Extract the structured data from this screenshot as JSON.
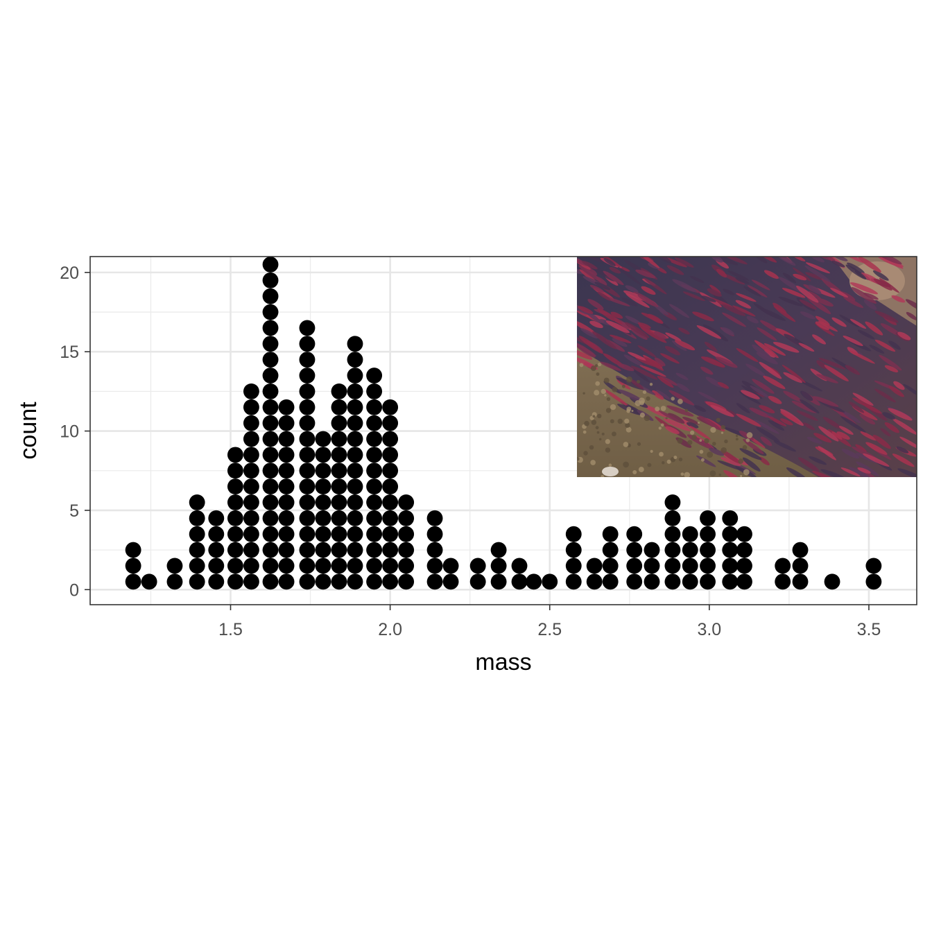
{
  "chart_data": {
    "type": "dotplot",
    "xlabel": "mass",
    "ylabel": "count",
    "xlim": [
      1.06,
      3.65
    ],
    "ylim": [
      -0.95,
      21.0
    ],
    "x_ticks": [
      {
        "value": 1.5,
        "label": "1.5"
      },
      {
        "value": 2.0,
        "label": "2.0"
      },
      {
        "value": 2.5,
        "label": "2.5"
      },
      {
        "value": 3.0,
        "label": "3.0"
      },
      {
        "value": 3.5,
        "label": "3.5"
      }
    ],
    "y_ticks": [
      {
        "value": 0,
        "label": "0"
      },
      {
        "value": 5,
        "label": "5"
      },
      {
        "value": 10,
        "label": "10"
      },
      {
        "value": 15,
        "label": "15"
      },
      {
        "value": 20,
        "label": "20"
      }
    ],
    "bins": [
      {
        "x": 1.195,
        "count": 3
      },
      {
        "x": 1.245,
        "count": 1
      },
      {
        "x": 1.325,
        "count": 2
      },
      {
        "x": 1.395,
        "count": 6
      },
      {
        "x": 1.455,
        "count": 5
      },
      {
        "x": 1.515,
        "count": 9
      },
      {
        "x": 1.565,
        "count": 13
      },
      {
        "x": 1.625,
        "count": 21
      },
      {
        "x": 1.675,
        "count": 12
      },
      {
        "x": 1.74,
        "count": 17
      },
      {
        "x": 1.79,
        "count": 10
      },
      {
        "x": 1.84,
        "count": 13
      },
      {
        "x": 1.89,
        "count": 16
      },
      {
        "x": 1.95,
        "count": 14
      },
      {
        "x": 2.0,
        "count": 12
      },
      {
        "x": 2.05,
        "count": 6
      },
      {
        "x": 2.14,
        "count": 5
      },
      {
        "x": 2.19,
        "count": 2
      },
      {
        "x": 2.275,
        "count": 2
      },
      {
        "x": 2.34,
        "count": 3
      },
      {
        "x": 2.405,
        "count": 2
      },
      {
        "x": 2.45,
        "count": 1
      },
      {
        "x": 2.5,
        "count": 1
      },
      {
        "x": 2.575,
        "count": 4
      },
      {
        "x": 2.64,
        "count": 2
      },
      {
        "x": 2.69,
        "count": 4
      },
      {
        "x": 2.765,
        "count": 4
      },
      {
        "x": 2.82,
        "count": 3
      },
      {
        "x": 2.885,
        "count": 6
      },
      {
        "x": 2.94,
        "count": 4
      },
      {
        "x": 2.995,
        "count": 5
      },
      {
        "x": 3.065,
        "count": 5
      },
      {
        "x": 3.11,
        "count": 4
      },
      {
        "x": 3.23,
        "count": 2
      },
      {
        "x": 3.285,
        "count": 3
      },
      {
        "x": 3.385,
        "count": 1
      },
      {
        "x": 3.515,
        "count": 2
      }
    ],
    "dot_color": "#000000",
    "grid": true,
    "theme": "bw",
    "inset_image": "photo of a dense school of red sockeye salmon in shallow water over gravel, top-right of panel"
  }
}
